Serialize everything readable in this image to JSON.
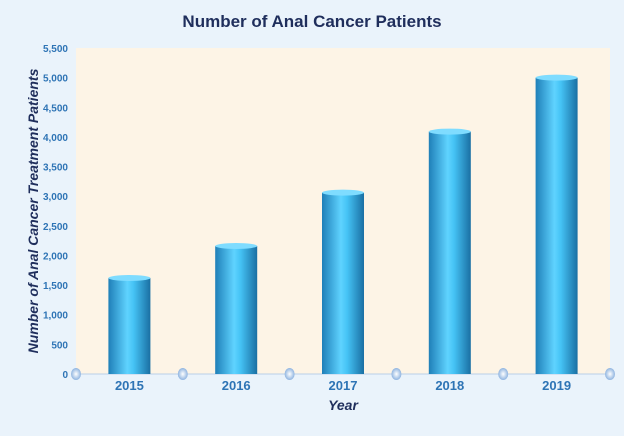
{
  "chart_data": {
    "type": "bar",
    "title": "Number of Anal Cancer Patients",
    "xlabel": "Year",
    "ylabel": "Number of Anal Cancer Treatment  Patients",
    "categories": [
      "2015",
      "2016",
      "2017",
      "2018",
      "2019"
    ],
    "values": [
      1620,
      2160,
      3060,
      4090,
      5000
    ],
    "ylim": [
      0,
      5500
    ],
    "yticks": [
      0,
      500,
      1000,
      1500,
      2000,
      2500,
      3000,
      3500,
      4000,
      4500,
      5000,
      5500
    ],
    "ytick_labels": [
      "0",
      "500",
      "1,000",
      "1,500",
      "2,000",
      "2,500",
      "3,000",
      "3,500",
      "4,000",
      "4,500",
      "5,000",
      "5,500"
    ],
    "grid": false,
    "legend": "none",
    "colors": {
      "bar_light": "#5fd3ff",
      "bar_dark": "#1f7fb8",
      "plot_bg": "#fdf4e6",
      "page_bg": "#eaf3fb",
      "title": "#1f2e5c",
      "tick": "#2e74b5",
      "axis_dot": "#8fb4e0"
    }
  }
}
